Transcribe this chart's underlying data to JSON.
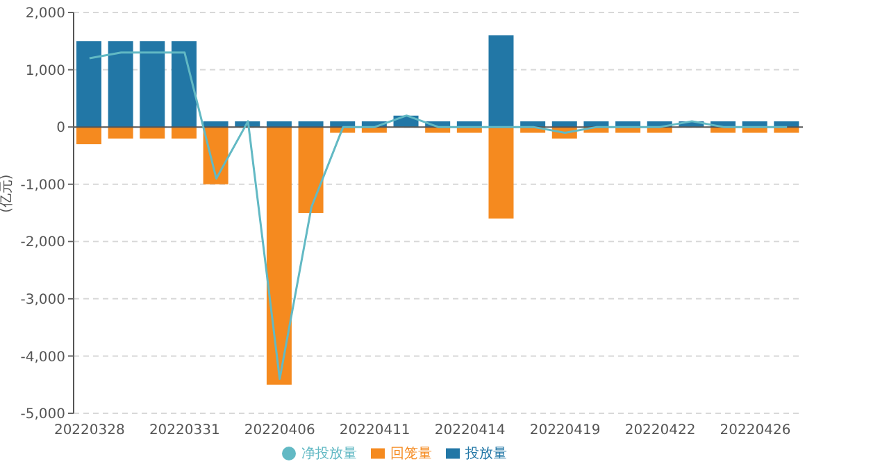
{
  "chart_data": {
    "type": "bar",
    "stacked": true,
    "ylabel": "(亿元)",
    "categories": [
      "20220328",
      null,
      null,
      "20220331",
      null,
      null,
      "20220406",
      null,
      null,
      "20220411",
      null,
      null,
      "20220414",
      null,
      null,
      "20220419",
      null,
      null,
      "20220422",
      null,
      null,
      "20220426",
      null
    ],
    "series": [
      {
        "name": "投放量",
        "color": "#2277a6",
        "values": [
          1500,
          1500,
          1500,
          1500,
          100,
          100,
          100,
          100,
          100,
          100,
          200,
          100,
          100,
          1600,
          100,
          100,
          100,
          100,
          100,
          100,
          100,
          100,
          100
        ]
      },
      {
        "name": "回笼量",
        "color": "#f58a1f",
        "values": [
          -300,
          -200,
          -200,
          -200,
          -1000,
          null,
          -4500,
          -1500,
          -100,
          -100,
          null,
          -100,
          -100,
          -1600,
          -100,
          -200,
          -100,
          -100,
          -100,
          null,
          -100,
          -100,
          -100
        ]
      },
      {
        "name": "净投放量",
        "type": "line",
        "color": "#62b9c4",
        "marker": "none",
        "values": [
          1200,
          1300,
          1300,
          1300,
          -900,
          100,
          -4400,
          -1400,
          0,
          0,
          200,
          0,
          0,
          0,
          0,
          -100,
          0,
          0,
          0,
          100,
          0,
          0,
          0
        ]
      }
    ],
    "ylim": [
      -5000,
      2000
    ],
    "yticks": [
      {
        "value": -5000,
        "label": "-5,000"
      },
      {
        "value": -4000,
        "label": "-4,000"
      },
      {
        "value": -3000,
        "label": "-3,000"
      },
      {
        "value": -2000,
        "label": "-2,000"
      },
      {
        "value": -1000,
        "label": "-1,000"
      },
      {
        "value": 0,
        "label": "0"
      },
      {
        "value": 1000,
        "label": "1,000"
      },
      {
        "value": 2000,
        "label": "2,000"
      }
    ],
    "grid": "y",
    "legend": "bottom"
  }
}
